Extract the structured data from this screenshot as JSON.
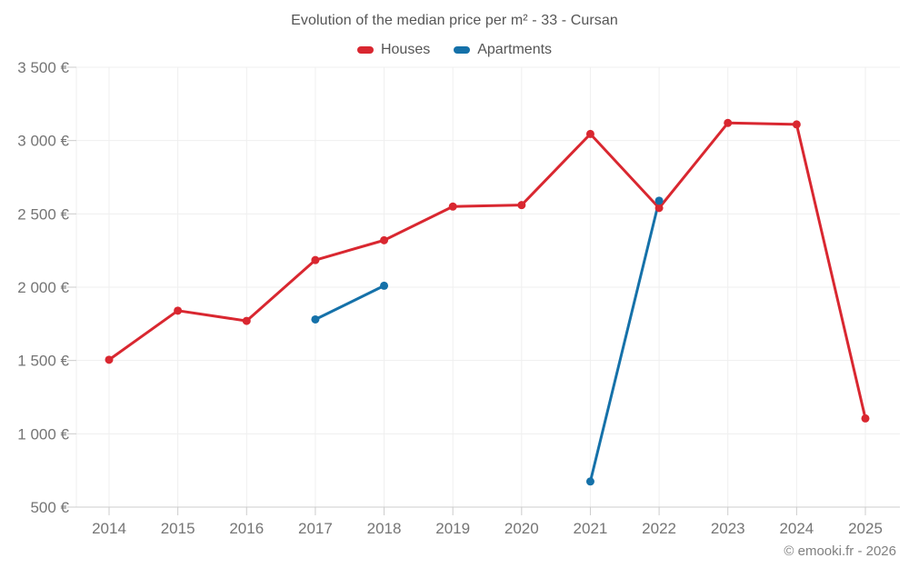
{
  "chart": {
    "title": "Evolution of the median price per m² - 33 - Cursan"
  },
  "legend": {
    "items": [
      {
        "label": "Houses",
        "color": "#d92730"
      },
      {
        "label": "Apartments",
        "color": "#1571a9"
      }
    ]
  },
  "chart_data": {
    "type": "line",
    "title": "Evolution of the median price per m² - 33 - Cursan",
    "x": [
      2014,
      2015,
      2016,
      2017,
      2018,
      2019,
      2020,
      2021,
      2022,
      2023,
      2024,
      2025
    ],
    "series": [
      {
        "name": "Houses",
        "color": "#d92730",
        "values": [
          1505,
          1840,
          1770,
          2185,
          2320,
          2550,
          2560,
          3045,
          2540,
          3120,
          3110,
          1105
        ]
      },
      {
        "name": "Apartments",
        "color": "#1571a9",
        "values": [
          null,
          null,
          null,
          1780,
          2010,
          null,
          null,
          675,
          2590,
          null,
          null,
          null
        ]
      }
    ],
    "xlabel": "",
    "ylabel": "",
    "ylim": [
      500,
      3500
    ],
    "ytick_step": 500,
    "ytick_labels": [
      "500 €",
      "1 000 €",
      "1 500 €",
      "2 000 €",
      "2 500 €",
      "3 000 €",
      "3 500 €"
    ],
    "xtick_labels": [
      "2014",
      "2015",
      "2016",
      "2017",
      "2018",
      "2019",
      "2020",
      "2021",
      "2022",
      "2023",
      "2024",
      "2025"
    ],
    "grid": true,
    "legend_position": "top",
    "currency": "€"
  },
  "footer": {
    "copyright": "© emooki.fr - 2026"
  },
  "colors": {
    "background": "#ffffff",
    "grid": "#efefef",
    "axis": "#cccccc",
    "tick_label": "#757575",
    "title_text": "#555555",
    "copyright_text": "#808080"
  }
}
